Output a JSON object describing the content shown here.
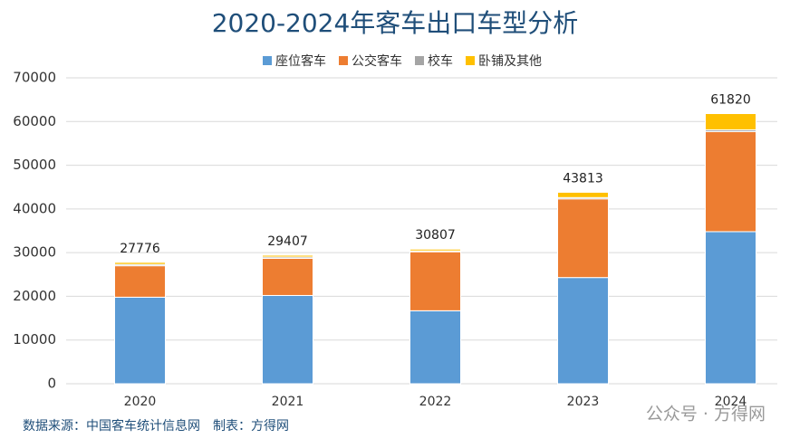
{
  "chart_data": {
    "type": "stacked_bar",
    "title": "2020-2024年客车出口车型分析",
    "categories": [
      "2020",
      "2021",
      "2022",
      "2023",
      "2024"
    ],
    "series": [
      {
        "name": "座位客车",
        "color": "#5b9bd5",
        "values": [
          19800,
          20200,
          16700,
          24300,
          34800
        ]
      },
      {
        "name": "公交客车",
        "color": "#ed7d31",
        "values": [
          7200,
          8500,
          13500,
          18000,
          22900
        ]
      },
      {
        "name": "校车",
        "color": "#a5a5a5",
        "values": [
          300,
          300,
          200,
          300,
          400
        ]
      },
      {
        "name": "卧铺及其他",
        "color": "#ffc000",
        "values": [
          476,
          407,
          407,
          1213,
          3720
        ]
      }
    ],
    "totals": [
      27776,
      29407,
      30807,
      43813,
      61820
    ],
    "ylim": [
      0,
      70000
    ],
    "yticks": [
      0,
      10000,
      20000,
      30000,
      40000,
      50000,
      60000,
      70000
    ],
    "grid": true,
    "legend": "top",
    "source": "数据来源：中国客车统计信息网　制表：方得网",
    "watermark": "公众号 · 方得网"
  }
}
